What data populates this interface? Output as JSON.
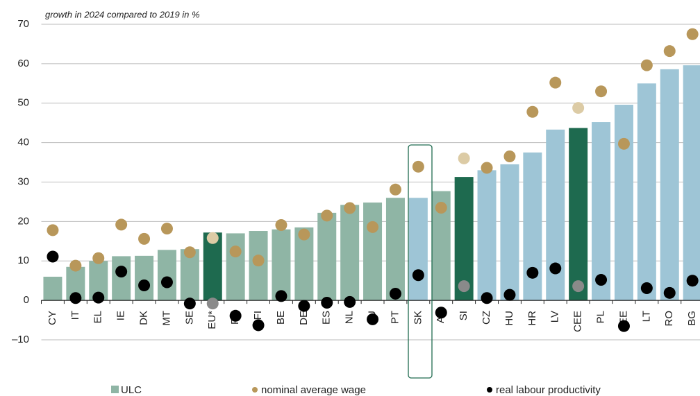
{
  "chart_data": {
    "type": "bar_dot",
    "title": "growth in 2024 compared to 2019 in %",
    "categories": [
      "CY",
      "IT",
      "EL",
      "IE",
      "DK",
      "MT",
      "SE",
      "EU*",
      "FR",
      "FI",
      "BE",
      "DE",
      "ES",
      "NL",
      "LU",
      "PT",
      "SK",
      "AT",
      "SI",
      "CZ",
      "HU",
      "HR",
      "LV",
      "CEE",
      "PL",
      "EE",
      "LT",
      "RO",
      "BG"
    ],
    "series": [
      {
        "name": "ULC",
        "kind": "bar",
        "color": "#8fb5a5",
        "values": [
          6,
          8.5,
          10,
          11.2,
          11.3,
          12.8,
          13,
          17.2,
          17,
          17.6,
          18,
          18.5,
          22.2,
          24.2,
          24.8,
          26,
          26,
          27.7,
          31.3,
          33,
          34.5,
          37.5,
          43.3,
          43.7,
          45.2,
          49.6,
          55,
          58.6,
          59.6
        ],
        "colors": [
          "#8fb5a5",
          "#8fb5a5",
          "#8fb5a5",
          "#8fb5a5",
          "#8fb5a5",
          "#8fb5a5",
          "#8fb5a5",
          "#1e6a4f",
          "#8fb5a5",
          "#8fb5a5",
          "#8fb5a5",
          "#8fb5a5",
          "#8fb5a5",
          "#8fb5a5",
          "#8fb5a5",
          "#8fb5a5",
          "#9ec5d6",
          "#8fb5a5",
          "#1e6a4f",
          "#9ec5d6",
          "#9ec5d6",
          "#9ec5d6",
          "#9ec5d6",
          "#1e6a4f",
          "#9ec5d6",
          "#9ec5d6",
          "#9ec5d6",
          "#9ec5d6",
          "#9ec5d6"
        ]
      },
      {
        "name": "nominal average wage",
        "kind": "dot",
        "color": "#b8975a",
        "values": [
          17.8,
          8.8,
          10.7,
          19.2,
          15.6,
          18.2,
          12.2,
          15.8,
          12.4,
          10.1,
          19.1,
          16.7,
          21.5,
          23.4,
          18.6,
          28.1,
          33.9,
          23.5,
          36,
          33.6,
          36.5,
          47.8,
          55.2,
          48.8,
          53,
          39.7,
          59.6,
          63.2,
          67.5
        ],
        "colors": [
          "#b8975a",
          "#b8975a",
          "#b8975a",
          "#b8975a",
          "#b8975a",
          "#b8975a",
          "#b8975a",
          "#dccba5",
          "#b8975a",
          "#b8975a",
          "#b8975a",
          "#b8975a",
          "#b8975a",
          "#b8975a",
          "#b8975a",
          "#b8975a",
          "#b8975a",
          "#b8975a",
          "#dccba5",
          "#b8975a",
          "#b8975a",
          "#b8975a",
          "#b8975a",
          "#dccba5",
          "#b8975a",
          "#b8975a",
          "#b8975a",
          "#b8975a",
          "#b8975a"
        ]
      },
      {
        "name": "real labour productivity",
        "kind": "dot",
        "color": "#000000",
        "values": [
          11.1,
          0.6,
          0.7,
          7.3,
          3.8,
          4.6,
          -0.8,
          -0.8,
          -3.9,
          -6.3,
          1.1,
          -1.4,
          -0.6,
          -0.4,
          -4.8,
          1.7,
          6.4,
          -3.1,
          3.6,
          0.6,
          1.4,
          7.0,
          8.1,
          3.6,
          5.2,
          -6.5,
          3.1,
          1.9,
          5.0
        ],
        "colors": [
          "#000000",
          "#000000",
          "#000000",
          "#000000",
          "#000000",
          "#000000",
          "#000000",
          "#8a8a8a",
          "#000000",
          "#000000",
          "#000000",
          "#000000",
          "#000000",
          "#000000",
          "#000000",
          "#000000",
          "#000000",
          "#000000",
          "#8a8a8a",
          "#000000",
          "#000000",
          "#000000",
          "#000000",
          "#8a8a8a",
          "#000000",
          "#000000",
          "#000000",
          "#000000",
          "#000000"
        ]
      }
    ],
    "ylim": [
      -10,
      70
    ],
    "yticks": [
      {
        "value": -10,
        "label": "–10"
      },
      0,
      10,
      20,
      30,
      40,
      50,
      60,
      70
    ],
    "grid": true
  }
}
